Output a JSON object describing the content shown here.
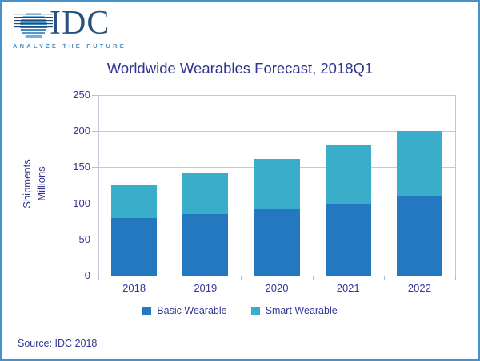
{
  "logo": {
    "text": "IDC",
    "tagline": "ANALYZE THE FUTURE",
    "navy": "#27517d",
    "light_blue": "#4e92c6"
  },
  "source": {
    "text": "Source: IDC 2018"
  },
  "colors": {
    "frame_border": "#4491cc",
    "text_ink": "#323795",
    "gridline": "#c6c4de",
    "basic_wearable": "#2478bf",
    "smart_wearable": "#39adc9"
  },
  "chart_data": {
    "type": "bar",
    "stacked": true,
    "title": "Worldwide Wearables Forecast, 2018Q1",
    "categories": [
      "2018",
      "2019",
      "2020",
      "2021",
      "2022"
    ],
    "series": [
      {
        "name": "Basic Wearable",
        "color": "#2478bf",
        "values": [
          80,
          85,
          92,
          100,
          109
        ]
      },
      {
        "name": "Smart Wearable",
        "color": "#39adc9",
        "values": [
          45,
          57,
          69,
          80,
          91
        ]
      }
    ],
    "totals": [
      125,
      142,
      161,
      180,
      200
    ],
    "xlabel": "",
    "ylabel_lines": [
      "Shipments",
      "Millions"
    ],
    "yticks": [
      0,
      50,
      100,
      150,
      200,
      250
    ],
    "ylim": [
      0,
      250
    ],
    "grid": "horizontal",
    "legend_position": "bottom"
  }
}
